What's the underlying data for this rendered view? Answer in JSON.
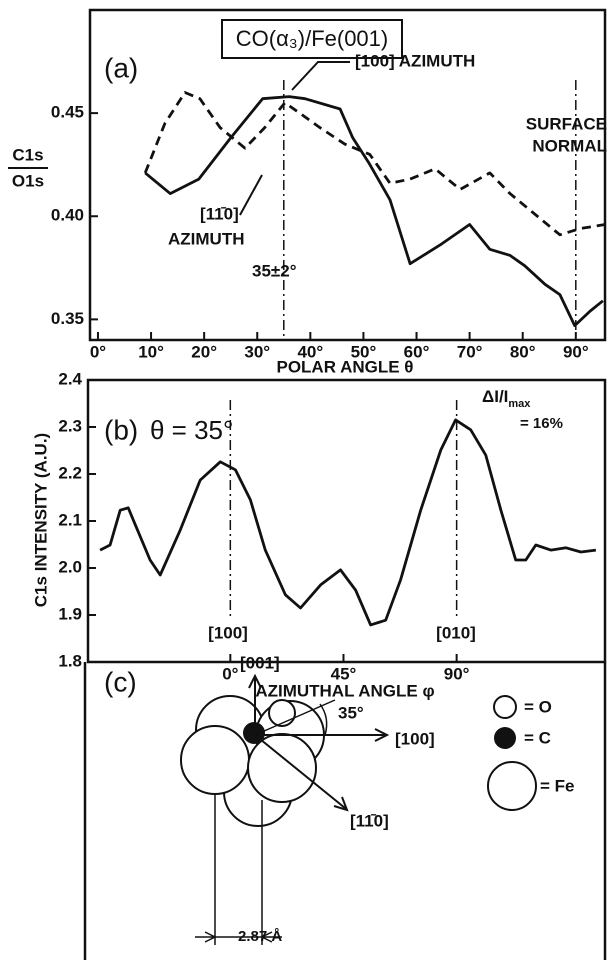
{
  "chart_data": [
    {
      "type": "line",
      "title": "CO(α₃)/Fe(001)",
      "panel": "(a)",
      "ylabel": {
        "numerator": "C1s",
        "denominator": "O1s"
      },
      "xlabel": "POLAR ANGLE θ",
      "xlim": [
        -1.5,
        95.5
      ],
      "ylim": [
        0.34,
        0.5
      ],
      "xticks": [
        {
          "value": 0,
          "label": "0°"
        },
        {
          "value": 10,
          "label": "10°"
        },
        {
          "value": 20,
          "label": "20°"
        },
        {
          "value": 30,
          "label": "30°"
        },
        {
          "value": 40,
          "label": "40°"
        },
        {
          "value": 50,
          "label": "50°"
        },
        {
          "value": 60,
          "label": "60°"
        },
        {
          "value": 70,
          "label": "70°"
        },
        {
          "value": 80,
          "label": "80°"
        },
        {
          "value": 90,
          "label": "90°"
        }
      ],
      "yticks": [
        0.35,
        {
          "value": 0.4,
          "label": "0.40"
        },
        0.45
      ],
      "vlines": [
        35,
        90
      ],
      "annotations": [
        "[100] AZIMUTH",
        "SURFACE",
        "NORMAL",
        "[11̄0]",
        "AZIMUTH",
        "35±2°"
      ],
      "series": [
        {
          "color": "#111",
          "style": "solid",
          "x": [
            8.9,
            13.6,
            19,
            25,
            31,
            36,
            39,
            45.6,
            48,
            51,
            55,
            58.8,
            64.4,
            70,
            73.8,
            77.6,
            80.4,
            84.2,
            87,
            89.8,
            92.7,
            95.1
          ],
          "values": [
            0.421,
            0.411,
            0.418,
            0.438,
            0.457,
            0.458,
            0.457,
            0.452,
            0.438,
            0.426,
            0.408,
            0.377,
            0.386,
            0.396,
            0.384,
            0.381,
            0.376,
            0.367,
            0.362,
            0.347,
            0.354,
            0.359
          ]
        },
        {
          "color": "#111",
          "style": "dashed",
          "x": [
            8.9,
            12.6,
            16.4,
            19.2,
            23,
            27.7,
            31.4,
            35.2,
            38,
            41.8,
            46.5,
            51.2,
            55,
            58.8,
            63.5,
            68.2,
            73.8,
            77.6,
            82.3,
            87,
            90.8,
            95.5
          ],
          "values": [
            0.421,
            0.445,
            0.46,
            0.457,
            0.443,
            0.433,
            0.443,
            0.455,
            0.45,
            0.443,
            0.435,
            0.43,
            0.416,
            0.418,
            0.423,
            0.413,
            0.421,
            0.411,
            0.401,
            0.391,
            0.394,
            0.396
          ]
        }
      ]
    },
    {
      "type": "line",
      "panel": "(b)",
      "subtitle": "θ = 35°",
      "delta_label": "ΔI/I",
      "delta_sub": "max",
      "delta_value": "= 16%",
      "ylabel": "C1s INTENSITY (A.U.)",
      "xlabel": "AZIMUTHAL ANGLE φ",
      "xlim": [
        -56.6,
        149
      ],
      "ylim": [
        1.8,
        2.4
      ],
      "xticks": [
        {
          "value": 0,
          "label": "0°"
        },
        {
          "value": 45,
          "label": "45°"
        },
        {
          "value": 90,
          "label": "90°"
        }
      ],
      "yticks": [
        1.8,
        1.9,
        {
          "value": 2.0,
          "label": "2.0"
        },
        2.1,
        2.2,
        2.3,
        2.4
      ],
      "vlines": [
        0,
        90
      ],
      "annotations": [
        "[100]",
        "[010]"
      ],
      "series": [
        {
          "color": "#111",
          "style": "solid",
          "x": [
            -51.8,
            -47.8,
            -43.8,
            -40.6,
            -37.8,
            -31.9,
            -27.9,
            -19.9,
            -12,
            -4,
            2,
            8,
            13.9,
            21.9,
            27.9,
            35.9,
            43.8,
            49.8,
            55.8,
            61.8,
            67.7,
            75.7,
            83.7,
            89.6,
            95.6,
            101.6,
            107.6,
            113.5,
            117.5,
            121.5,
            127.5,
            133.5,
            139.4,
            145.4
          ],
          "values": [
            2.038,
            2.049,
            2.123,
            2.128,
            2.092,
            2.017,
            1.985,
            2.081,
            2.187,
            2.226,
            2.209,
            2.145,
            2.038,
            1.943,
            1.915,
            1.964,
            1.996,
            1.953,
            1.879,
            1.889,
            1.975,
            2.123,
            2.251,
            2.315,
            2.294,
            2.24,
            2.123,
            2.017,
            2.017,
            2.049,
            2.038,
            2.043,
            2.034,
            2.038
          ]
        }
      ]
    }
  ],
  "diagram": {
    "panel": "(c)",
    "labels": [
      "[001]",
      "[100]",
      "[11̄0]",
      "35°",
      "2.87 Å"
    ],
    "legend": [
      "= O",
      "= C",
      "= Fe"
    ]
  }
}
